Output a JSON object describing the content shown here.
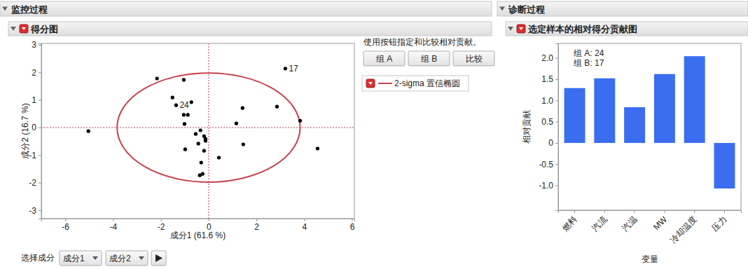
{
  "page": {
    "panels": [
      "监控过程",
      "诊断过程"
    ],
    "instruction": "使用按钮指定和比较相对贡献。",
    "buttons": [
      "组 A",
      "组 B",
      "比较"
    ],
    "select_label": "选择成分",
    "selectors": [
      "成分1",
      "成分2"
    ]
  },
  "chart_data": [
    {
      "type": "scatter",
      "title": "得分图",
      "x_label": "成分1 (61.6 %)",
      "y_label": "成分2 (16.7 %)",
      "x": [
        -5.03,
        -2.16,
        -1.51,
        -1.36,
        -1.04,
        -0.72,
        -1.04,
        -0.87,
        -1.01,
        -0.98,
        -0.54,
        -0.34,
        -0.19,
        -0.13,
        -0.13,
        -0.43,
        -0.19,
        -0.31,
        -0.25,
        -0.37,
        0.43,
        1.16,
        1.42,
        1.45,
        2.86,
        3.21,
        3.83,
        4.56
      ],
      "values": [
        -0.13,
        1.78,
        1.09,
        0.81,
        1.73,
        0.92,
        0.46,
        0.46,
        0.13,
        -0.79,
        -0.23,
        -0.1,
        -0.31,
        -0.41,
        -0.48,
        -0.58,
        -0.84,
        -1.27,
        -1.68,
        -1.73,
        -1.09,
        0.15,
        0.71,
        -0.61,
        0.76,
        2.14,
        0.25,
        -0.76
      ],
      "point_labels": [
        null,
        null,
        null,
        "24",
        null,
        null,
        null,
        null,
        null,
        null,
        null,
        null,
        null,
        null,
        null,
        null,
        null,
        null,
        null,
        null,
        null,
        null,
        null,
        null,
        null,
        "17",
        null,
        null
      ],
      "color": "#000000",
      "marker": "circle",
      "xlim": [
        -7.0,
        6.1
      ],
      "ylim": [
        -3.3,
        3.05
      ],
      "xticks": [
        -6,
        -4,
        -2,
        0,
        2,
        4,
        6
      ],
      "yticks": [
        -3,
        -2,
        -1,
        0,
        1,
        2,
        3
      ],
      "ellipse": {
        "label": "2-sigma 置信椭圆",
        "center": [
          0,
          0
        ],
        "rx": 3.83,
        "ry": 1.98,
        "color": "#c8414f"
      },
      "reference_lines": {
        "x": 0,
        "y": 0,
        "color": "#c8414f",
        "line_style": "dotted"
      }
    },
    {
      "type": "bar",
      "title": "选定样本的相对得分贡献图",
      "x_label": "变量",
      "y_label": "相对贡献",
      "categories": [
        "燃料",
        "汽流",
        "汽温",
        "MW",
        "冷却温度",
        "压力"
      ],
      "values": [
        1.29,
        1.52,
        0.84,
        1.62,
        2.04,
        -1.07
      ],
      "color": "#3a6df0",
      "ylim": [
        -1.58,
        2.34
      ],
      "yticks": [
        {
          "value": -1,
          "label": "-1.0"
        },
        {
          "value": -0.5,
          "label": "-0.5"
        },
        0,
        0.5,
        {
          "value": 1,
          "label": "1.0"
        },
        1.5,
        {
          "value": 2,
          "label": "2.0"
        }
      ],
      "annotations": [
        "组 A: 24",
        "组 B: 17"
      ]
    }
  ]
}
